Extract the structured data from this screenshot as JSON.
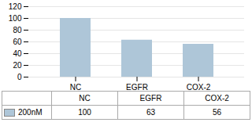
{
  "chart_data": {
    "type": "bar",
    "categories": [
      "NC",
      "EGFR",
      "COX-2"
    ],
    "series": [
      {
        "name": "200nM",
        "color": "#aec6d8",
        "values": [
          100,
          63,
          56
        ]
      }
    ],
    "ylim": [
      0,
      120
    ],
    "yticks": [
      0,
      20,
      40,
      60,
      80,
      100,
      120
    ],
    "grid": true,
    "data_labels": true
  }
}
